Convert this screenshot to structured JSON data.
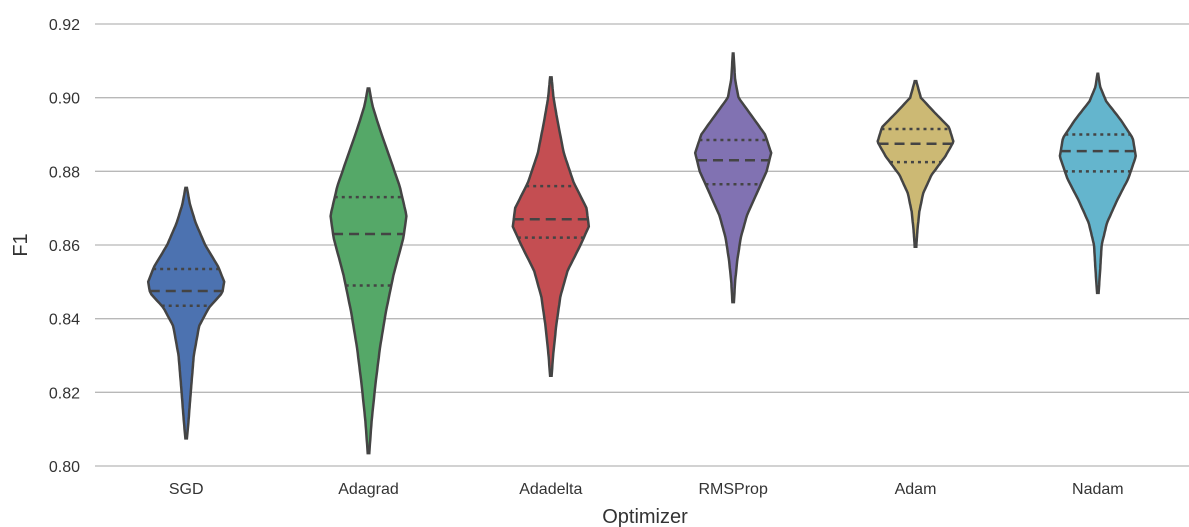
{
  "chart_data": {
    "type": "violin",
    "xlabel": "Optimizer",
    "ylabel": "F1",
    "ylim": [
      0.8,
      0.92
    ],
    "yticks": [
      "0.80",
      "0.82",
      "0.84",
      "0.86",
      "0.88",
      "0.90",
      "0.92"
    ],
    "grid": true,
    "categories": [
      "SGD",
      "Adagrad",
      "Adadelta",
      "RMSProp",
      "Adam",
      "Nadam"
    ],
    "colors": [
      "#4c72b0",
      "#55a868",
      "#c44e52",
      "#8172b2",
      "#ccb974",
      "#64b5cd"
    ],
    "series": [
      {
        "category": "SGD",
        "min": 0.8075,
        "max": 0.8755,
        "q1": 0.8435,
        "median": 0.8475,
        "q3": 0.8535,
        "density": [
          [
            0.8075,
            0.02
          ],
          [
            0.812,
            0.06
          ],
          [
            0.82,
            0.12
          ],
          [
            0.83,
            0.2
          ],
          [
            0.838,
            0.34
          ],
          [
            0.843,
            0.6
          ],
          [
            0.847,
            0.95
          ],
          [
            0.85,
            1.0
          ],
          [
            0.854,
            0.85
          ],
          [
            0.86,
            0.5
          ],
          [
            0.866,
            0.25
          ],
          [
            0.871,
            0.1
          ],
          [
            0.8755,
            0.02
          ]
        ]
      },
      {
        "category": "Adagrad",
        "min": 0.8035,
        "max": 0.9025,
        "q1": 0.849,
        "median": 0.863,
        "q3": 0.873,
        "density": [
          [
            0.8035,
            0.02
          ],
          [
            0.812,
            0.08
          ],
          [
            0.822,
            0.18
          ],
          [
            0.832,
            0.3
          ],
          [
            0.842,
            0.46
          ],
          [
            0.852,
            0.66
          ],
          [
            0.862,
            0.92
          ],
          [
            0.868,
            1.0
          ],
          [
            0.876,
            0.82
          ],
          [
            0.884,
            0.55
          ],
          [
            0.892,
            0.28
          ],
          [
            0.898,
            0.1
          ],
          [
            0.9025,
            0.02
          ]
        ]
      },
      {
        "category": "Adadelta",
        "min": 0.8245,
        "max": 0.9055,
        "q1": 0.862,
        "median": 0.867,
        "q3": 0.876,
        "density": [
          [
            0.8245,
            0.02
          ],
          [
            0.83,
            0.06
          ],
          [
            0.838,
            0.14
          ],
          [
            0.846,
            0.25
          ],
          [
            0.853,
            0.44
          ],
          [
            0.86,
            0.78
          ],
          [
            0.865,
            1.0
          ],
          [
            0.87,
            0.94
          ],
          [
            0.877,
            0.6
          ],
          [
            0.885,
            0.34
          ],
          [
            0.894,
            0.17
          ],
          [
            0.9,
            0.07
          ],
          [
            0.9055,
            0.02
          ]
        ]
      },
      {
        "category": "RMSProp",
        "min": 0.8445,
        "max": 0.912,
        "q1": 0.8765,
        "median": 0.883,
        "q3": 0.8885,
        "density": [
          [
            0.8445,
            0.02
          ],
          [
            0.85,
            0.05
          ],
          [
            0.856,
            0.11
          ],
          [
            0.862,
            0.2
          ],
          [
            0.868,
            0.36
          ],
          [
            0.874,
            0.62
          ],
          [
            0.88,
            0.88
          ],
          [
            0.885,
            1.0
          ],
          [
            0.89,
            0.84
          ],
          [
            0.896,
            0.42
          ],
          [
            0.9,
            0.14
          ],
          [
            0.905,
            0.05
          ],
          [
            0.912,
            0.01
          ]
        ]
      },
      {
        "category": "Adam",
        "min": 0.8595,
        "max": 0.9045,
        "q1": 0.8825,
        "median": 0.8875,
        "q3": 0.8915,
        "density": [
          [
            0.8595,
            0.02
          ],
          [
            0.864,
            0.05
          ],
          [
            0.869,
            0.1
          ],
          [
            0.874,
            0.2
          ],
          [
            0.879,
            0.42
          ],
          [
            0.884,
            0.78
          ],
          [
            0.888,
            1.0
          ],
          [
            0.892,
            0.88
          ],
          [
            0.896,
            0.5
          ],
          [
            0.9,
            0.14
          ],
          [
            0.9045,
            0.02
          ]
        ]
      },
      {
        "category": "Nadam",
        "min": 0.847,
        "max": 0.9065,
        "q1": 0.88,
        "median": 0.8855,
        "q3": 0.89,
        "density": [
          [
            0.847,
            0.02
          ],
          [
            0.853,
            0.06
          ],
          [
            0.86,
            0.1
          ],
          [
            0.866,
            0.24
          ],
          [
            0.872,
            0.5
          ],
          [
            0.878,
            0.8
          ],
          [
            0.884,
            1.0
          ],
          [
            0.889,
            0.92
          ],
          [
            0.894,
            0.6
          ],
          [
            0.899,
            0.22
          ],
          [
            0.903,
            0.06
          ],
          [
            0.9065,
            0.01
          ]
        ]
      }
    ]
  }
}
